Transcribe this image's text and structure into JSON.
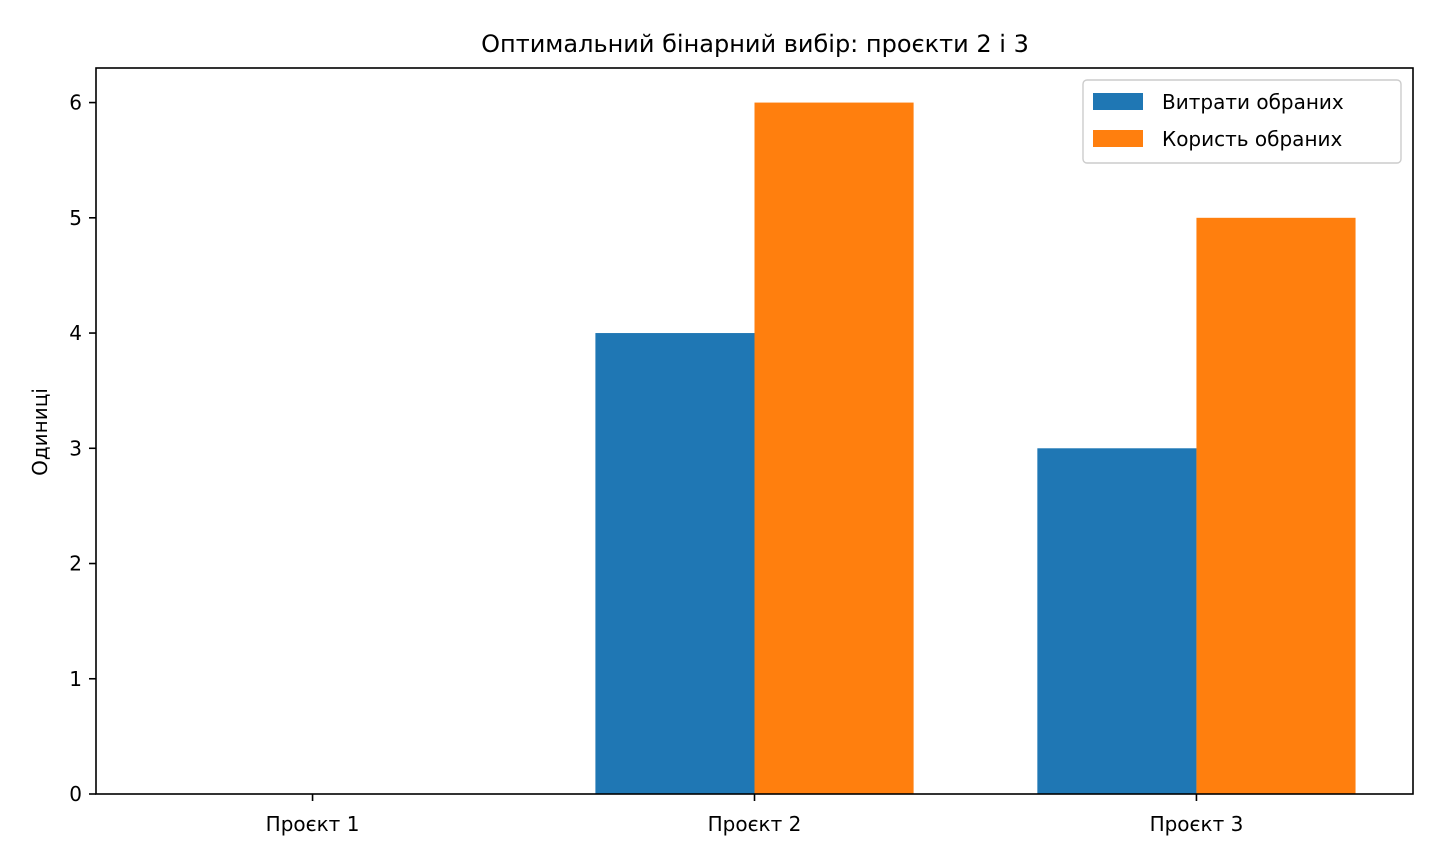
{
  "chart_data": {
    "type": "bar",
    "title": "Оптимальний бінарний вибір: проєкти 2 і 3",
    "xlabel": "",
    "ylabel": "Одиниці",
    "categories": [
      "Проєкт 1",
      "Проєкт 2",
      "Проєкт 3"
    ],
    "series": [
      {
        "name": "Витрати обраних",
        "values": [
          0,
          4,
          3
        ],
        "color": "#1f77b4"
      },
      {
        "name": "Користь обраних",
        "values": [
          0,
          6,
          5
        ],
        "color": "#ff7f0e"
      }
    ],
    "ylim": [
      0,
      6.3
    ],
    "yticks": [
      0,
      1,
      2,
      3,
      4,
      5,
      6
    ],
    "grid": false,
    "legend_position": "top-right"
  }
}
